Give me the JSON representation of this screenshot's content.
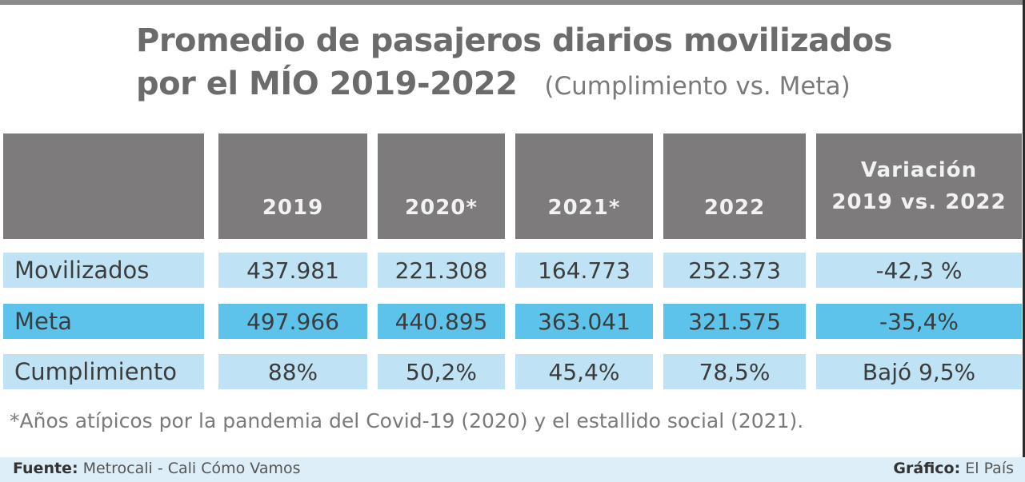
{
  "chart_data": {
    "type": "table",
    "title_line1": "Promedio de pasajeros diarios movilizados",
    "title_line2": "por el MÍO 2019-2022",
    "subtitle": "(Cumplimiento vs. Meta)",
    "columns": [
      "",
      "2019",
      "2020*",
      "2021*",
      "2022"
    ],
    "variation_header": [
      "Variación",
      "2019 vs. 2022"
    ],
    "rows": [
      {
        "label": "Movilizados",
        "values": [
          "437.981",
          "221.308",
          "164.773",
          "252.373"
        ],
        "variation": "-42,3 %"
      },
      {
        "label": "Meta",
        "values": [
          "497.966",
          "440.895",
          "363.041",
          "321.575"
        ],
        "variation": "-35,4%"
      },
      {
        "label": "Cumplimiento",
        "values": [
          "88%",
          "50,2%",
          "45,4%",
          "78,5%"
        ],
        "variation": "Bajó 9,5%"
      }
    ],
    "note": "*Años atípicos por la pandemia del Covid-19 (2020) y el estallido social (2021).",
    "source_label": "Fuente:",
    "source": "Metrocali - Cali Cómo Vamos",
    "credit_label": "Gráfico:",
    "credit": "El País"
  },
  "colors": {
    "header_bg": "#7d7b7b",
    "row_light": "#bfe3f5",
    "row_dark": "#5ec3ea",
    "title": "#6b6b6b"
  }
}
